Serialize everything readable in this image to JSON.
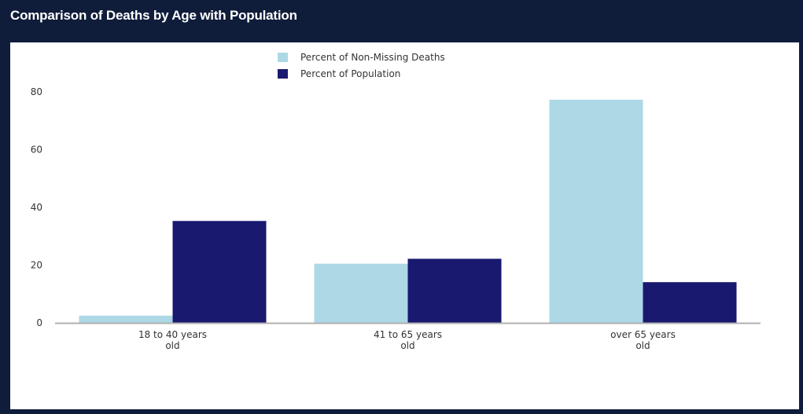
{
  "header": {
    "title": "Comparison of Deaths by Age with Population"
  },
  "colors": {
    "header_bg": "#0f1c3a",
    "series_deaths": "#add8e6",
    "series_population": "#191970",
    "axis": "#b0b0b0"
  },
  "chart_data": {
    "type": "bar",
    "title": "",
    "xlabel": "",
    "ylabel": "",
    "categories": [
      [
        "18 to 40 years",
        "old"
      ],
      [
        "41 to 65 years",
        "old"
      ],
      [
        "over 65 years",
        "old"
      ]
    ],
    "series": [
      {
        "name": "Percent of Non-Missing Deaths",
        "color": "#add8e6",
        "values": [
          2.5,
          20.5,
          77.3
        ]
      },
      {
        "name": "Percent of Population",
        "color": "#191970",
        "values": [
          35.3,
          22.2,
          14.1
        ]
      }
    ],
    "yticks": [
      0,
      20,
      40,
      60,
      80
    ],
    "ylim": [
      0,
      80
    ],
    "grid": false,
    "legend_position": "top-center"
  }
}
